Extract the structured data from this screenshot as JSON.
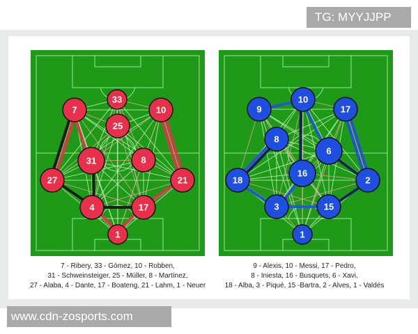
{
  "watermark_top": "TG: MYYJJPP",
  "watermark_bottom": "www.cdn-zosports.com",
  "colors": {
    "pitch": "#1e9a18",
    "pitch_line": "#9be88f",
    "left_team": "#e8304a",
    "right_team": "#1f4fe0"
  },
  "left": {
    "players": [
      "7",
      "33",
      "10",
      "25",
      "31",
      "8",
      "27",
      "21",
      "4",
      "17",
      "1"
    ],
    "legend": [
      "7 - Ribery, 33 - Gómez, 10 - Robben,",
      "31 - Schweinsteiger, 25 - Müller, 8 - Martínez,",
      "27 - Alaba, 4 - Dante, 17 - Boateng, 21 - Lahm, 1 - Neuer"
    ],
    "strong_passes": [
      [
        "7",
        "27"
      ],
      [
        "27",
        "7"
      ],
      [
        "7",
        "31"
      ],
      [
        "31",
        "4"
      ],
      [
        "10",
        "21"
      ],
      [
        "21",
        "10"
      ],
      [
        "4",
        "17"
      ],
      [
        "4",
        "1"
      ],
      [
        "1",
        "17"
      ],
      [
        "27",
        "4"
      ],
      [
        "21",
        "17"
      ]
    ]
  },
  "right": {
    "players": [
      "9",
      "10",
      "17",
      "8",
      "6",
      "16",
      "18",
      "2",
      "3",
      "15",
      "1"
    ],
    "legend": [
      "9 - Alexis, 10 - Messi, 17 - Pedro,",
      "8 - Iniesta, 16 - Busquets, 6 - Xavi,",
      "18 - Alba, 3 - Piqué, 15 -Bartra, 2 - Alves, 1 - Valdés"
    ],
    "strong_passes": [
      [
        "10",
        "16"
      ],
      [
        "17",
        "2"
      ],
      [
        "2",
        "17"
      ],
      [
        "18",
        "8"
      ],
      [
        "8",
        "18"
      ],
      [
        "3",
        "15"
      ],
      [
        "6",
        "2"
      ],
      [
        "16",
        "3"
      ],
      [
        "18",
        "3"
      ],
      [
        "15",
        "2"
      ],
      [
        "10",
        "6"
      ],
      [
        "9",
        "10"
      ]
    ]
  }
}
